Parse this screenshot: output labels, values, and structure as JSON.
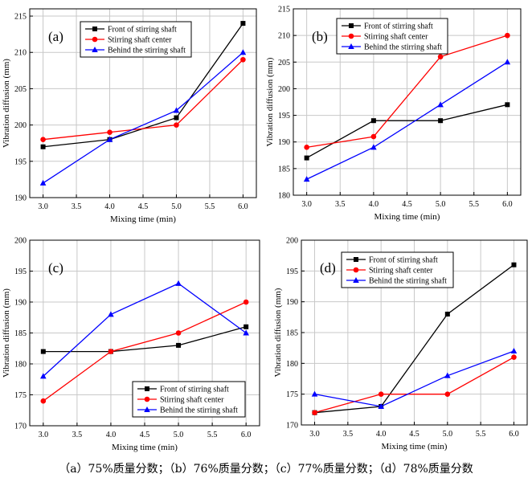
{
  "caption": "（a）75%质量分数；（b）76%质量分数；（c）77%质量分数；（d）78%质量分数",
  "colors": {
    "front": "#000000",
    "center": "#ff0000",
    "behind": "#0000ff",
    "grid": "#c8c8c8"
  },
  "chart_data": [
    {
      "type": "line",
      "panel_label": "(a)",
      "xlabel": "Mixing time (min)",
      "ylabel": "Vibration diffusion (mm)",
      "xlim": [
        2.8,
        6.2
      ],
      "ylim": [
        190,
        216
      ],
      "xticks": [
        3.0,
        3.5,
        4.0,
        4.5,
        5.0,
        5.5,
        6.0
      ],
      "yticks": [
        190,
        195,
        200,
        205,
        210,
        215
      ],
      "legend_position": "top-center",
      "grid": true,
      "x": [
        3.0,
        4.0,
        5.0,
        6.0
      ],
      "series": [
        {
          "name": "Front of stirring shaft",
          "marker": "square",
          "values": [
            197,
            198,
            201,
            214
          ]
        },
        {
          "name": "Stirring shaft center",
          "marker": "circle",
          "values": [
            198,
            199,
            200,
            209
          ]
        },
        {
          "name": "Behind the stirring shaft",
          "marker": "triangle",
          "values": [
            192,
            198,
            202,
            210
          ]
        }
      ]
    },
    {
      "type": "line",
      "panel_label": "(b)",
      "xlabel": "Mixing time (min)",
      "ylabel": "Vibration diffusion (mm)",
      "xlim": [
        2.8,
        6.2
      ],
      "ylim": [
        180,
        215
      ],
      "xticks": [
        3.0,
        3.5,
        4.0,
        4.5,
        5.0,
        5.5,
        6.0
      ],
      "yticks": [
        180,
        185,
        190,
        195,
        200,
        205,
        210,
        215
      ],
      "legend_position": "top-center",
      "grid": true,
      "x": [
        3.0,
        4.0,
        5.0,
        6.0
      ],
      "series": [
        {
          "name": "Front of stirring shaft",
          "marker": "square",
          "values": [
            187,
            194,
            194,
            197
          ]
        },
        {
          "name": "Stirring shaft center",
          "marker": "circle",
          "values": [
            189,
            191,
            206,
            210
          ]
        },
        {
          "name": "Behind the stirring shaft",
          "marker": "triangle",
          "values": [
            183,
            189,
            197,
            205
          ]
        }
      ]
    },
    {
      "type": "line",
      "panel_label": "(c)",
      "xlabel": "Mixing time (min)",
      "ylabel": "Vibration diffusion (mm)",
      "xlim": [
        2.8,
        6.2
      ],
      "ylim": [
        170,
        200
      ],
      "xticks": [
        3.0,
        3.5,
        4.0,
        4.5,
        5.0,
        5.5,
        6.0
      ],
      "yticks": [
        170,
        175,
        180,
        185,
        190,
        195,
        200
      ],
      "legend_position": "bottom-right",
      "grid": true,
      "x": [
        3.0,
        4.0,
        5.0,
        6.0
      ],
      "series": [
        {
          "name": "Front of stirring shaft",
          "marker": "square",
          "values": [
            182,
            182,
            183,
            186
          ]
        },
        {
          "name": "Stirring shaft center",
          "marker": "circle",
          "values": [
            174,
            182,
            185,
            190
          ]
        },
        {
          "name": "Behind the stirring shaft",
          "marker": "triangle",
          "values": [
            178,
            188,
            193,
            185
          ]
        }
      ]
    },
    {
      "type": "line",
      "panel_label": "(d)",
      "xlabel": "Mixing time (min)",
      "ylabel": "Vibration diffusion (mm)",
      "xlim": [
        2.8,
        6.2
      ],
      "ylim": [
        170,
        200
      ],
      "xticks": [
        3.0,
        3.5,
        4.0,
        4.5,
        5.0,
        5.5,
        6.0
      ],
      "yticks": [
        170,
        175,
        180,
        185,
        190,
        195,
        200
      ],
      "legend_position": "top-center",
      "grid": true,
      "x": [
        3.0,
        4.0,
        5.0,
        6.0
      ],
      "series": [
        {
          "name": "Front of stirring shaft",
          "marker": "square",
          "values": [
            172,
            173,
            188,
            196
          ]
        },
        {
          "name": "Stirring shaft center",
          "marker": "circle",
          "values": [
            172,
            175,
            175,
            181
          ]
        },
        {
          "name": "Behind the stirring shaft",
          "marker": "triangle",
          "values": [
            175,
            173,
            178,
            182
          ]
        }
      ]
    }
  ]
}
